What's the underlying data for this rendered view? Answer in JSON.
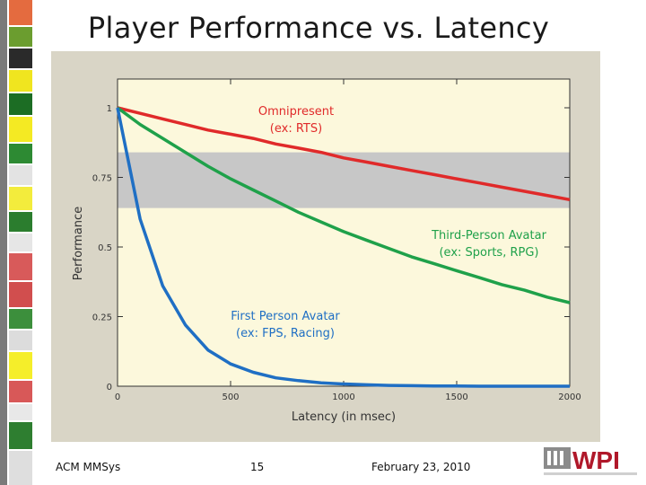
{
  "slide": {
    "title": "Player Performance vs. Latency",
    "footer_left": "ACM MMSys",
    "page_number": "15",
    "date": "February 23, 2010",
    "logo_text": "WPI"
  },
  "colors": {
    "omnipresent": "#e02a2a",
    "third_person": "#1fa14a",
    "first_person": "#1f6fc4",
    "plot_background": "#fcf8dc",
    "band": "#c7c7c7"
  },
  "chart_data": {
    "type": "line",
    "title": "",
    "xlabel": "Latency (in msec)",
    "ylabel": "Performance",
    "xlim": [
      0,
      2000
    ],
    "ylim": [
      0,
      1
    ],
    "x_ticks": [
      "0",
      "500",
      "1000",
      "1500",
      "2000"
    ],
    "y_ticks": [
      "0",
      "0.25",
      "0.5",
      "0.75",
      "1"
    ],
    "shaded_band": [
      0.64,
      0.84
    ],
    "x": [
      0,
      100,
      200,
      300,
      400,
      500,
      600,
      700,
      800,
      900,
      1000,
      1100,
      1200,
      1300,
      1400,
      1500,
      1600,
      1700,
      1800,
      1900,
      2000
    ],
    "series": [
      {
        "name": "Omnipresent",
        "label_lines": [
          "Omnipresent",
          "(ex: RTS)"
        ],
        "values": [
          1.0,
          0.98,
          0.96,
          0.94,
          0.92,
          0.905,
          0.89,
          0.87,
          0.855,
          0.84,
          0.82,
          0.805,
          0.79,
          0.775,
          0.76,
          0.745,
          0.73,
          0.715,
          0.7,
          0.685,
          0.67
        ]
      },
      {
        "name": "Third-Person Avatar",
        "label_lines": [
          "Third-Person Avatar",
          "(ex: Sports, RPG)"
        ],
        "values": [
          1.0,
          0.94,
          0.89,
          0.84,
          0.79,
          0.745,
          0.705,
          0.665,
          0.625,
          0.59,
          0.555,
          0.525,
          0.495,
          0.465,
          0.44,
          0.415,
          0.39,
          0.365,
          0.345,
          0.32,
          0.3
        ]
      },
      {
        "name": "First Person Avatar",
        "label_lines": [
          "First Person Avatar",
          "(ex: FPS, Racing)"
        ],
        "values": [
          1.0,
          0.6,
          0.36,
          0.22,
          0.13,
          0.08,
          0.05,
          0.03,
          0.02,
          0.012,
          0.008,
          0.005,
          0.003,
          0.002,
          0.001,
          0.001,
          0.0,
          0.0,
          0.0,
          0.0,
          0.0
        ]
      }
    ]
  }
}
